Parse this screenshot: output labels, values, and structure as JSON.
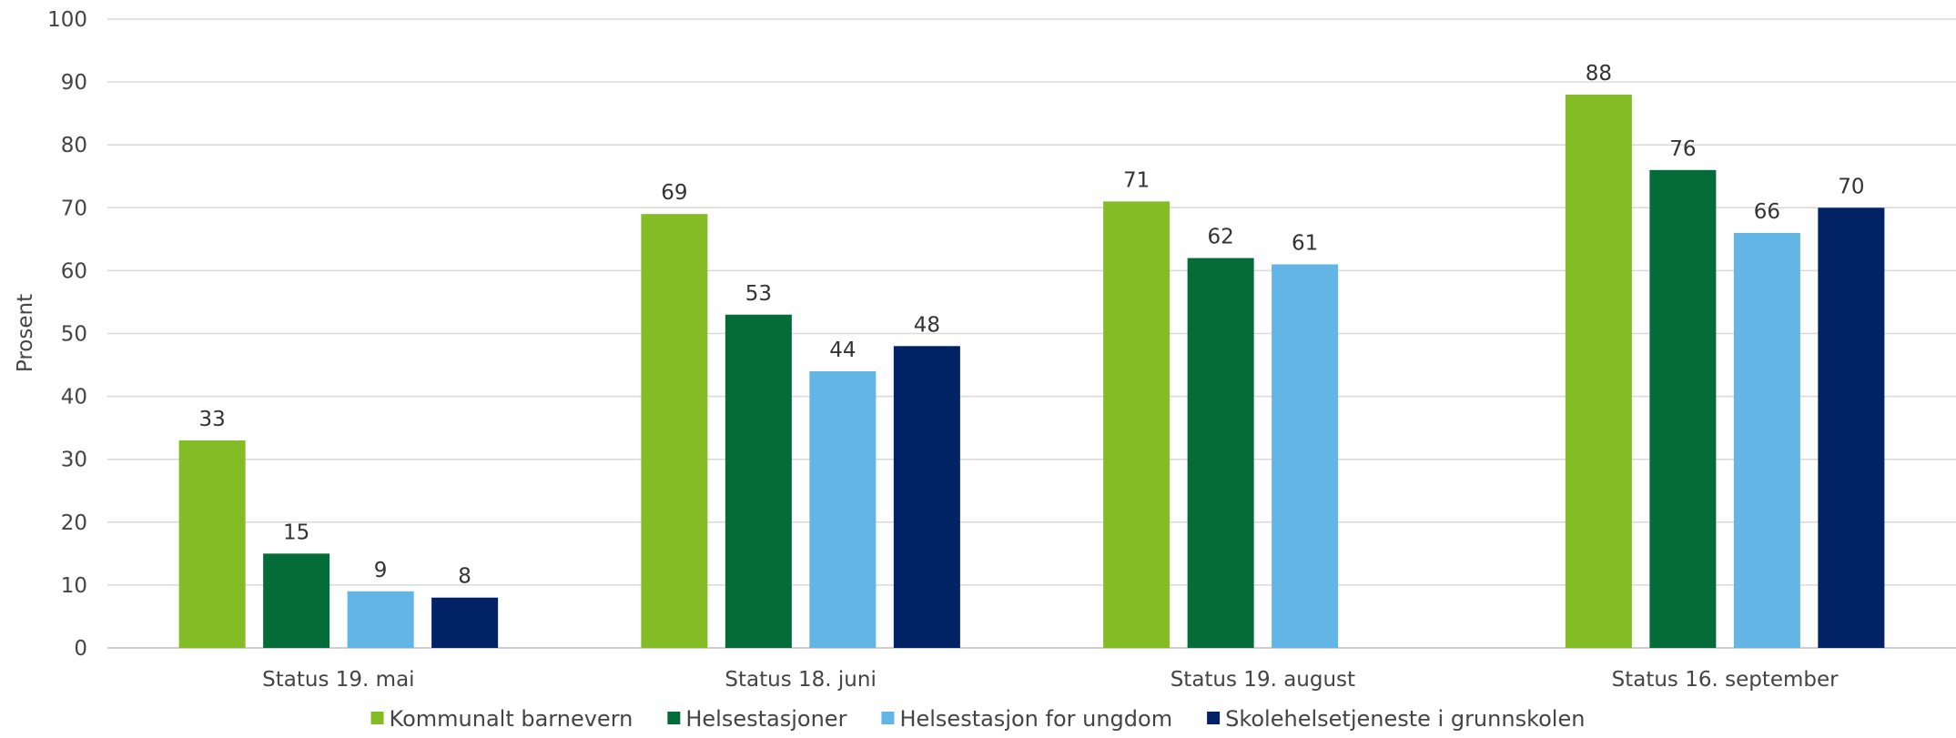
{
  "chart_data": {
    "type": "bar",
    "ylabel": "Prosent",
    "ylim": [
      0,
      100
    ],
    "yticks": [
      0,
      10,
      20,
      30,
      40,
      50,
      60,
      70,
      80,
      90,
      100
    ],
    "grid": true,
    "legend_position": "bottom",
    "categories": [
      "Status 19. mai",
      "Status 18. juni",
      "Status 19. august",
      "Status 16. september"
    ],
    "series": [
      {
        "name": "Kommunalt barnevern",
        "color": "#84bc26",
        "values": [
          33,
          69,
          71,
          88
        ],
        "value_labels": [
          "33",
          "69",
          "71",
          "88"
        ]
      },
      {
        "name": "Helsestasjoner",
        "color": "#036c38",
        "values": [
          15,
          53,
          62,
          76
        ],
        "value_labels": [
          "15",
          "53",
          "62",
          "76"
        ]
      },
      {
        "name": "Helsestasjon for ungdom",
        "color": "#62b5e5",
        "values": [
          9,
          44,
          61,
          66
        ],
        "value_labels": [
          "9",
          "44",
          "61",
          "66"
        ]
      },
      {
        "name": "Skolehelsetjeneste i grunnskolen",
        "color": "#022266",
        "values": [
          8,
          48,
          null,
          70
        ],
        "value_labels": [
          "8",
          "48",
          null,
          "70"
        ]
      }
    ]
  }
}
